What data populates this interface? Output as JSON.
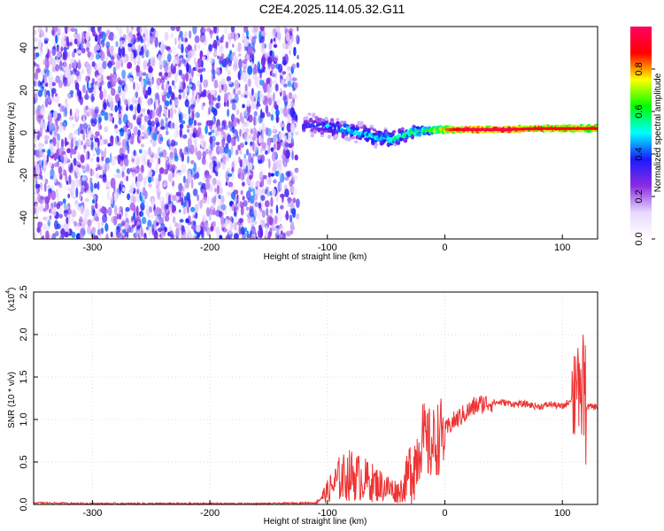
{
  "title": "C2E4.2025.114.05.32.G11",
  "chart_data": [
    {
      "type": "heatmap",
      "xlabel": "Height of straight line (km)",
      "ylabel": "Frequency (Hz)",
      "xlim": [
        -350,
        130
      ],
      "ylim": [
        -50,
        50
      ],
      "xticks": [
        "-300",
        "-200",
        "-100",
        "0",
        "100"
      ],
      "yticks": [
        "-40",
        "-20",
        "0",
        "20",
        "40"
      ],
      "colorbar": {
        "label": "Normalized spectral amplitude",
        "range": [
          0,
          1
        ],
        "ticks": [
          "0.0",
          "0.2",
          "0.4",
          "0.6",
          "0.8"
        ],
        "colors": [
          "#ffffff",
          "#e8d8ff",
          "#8a2be2",
          "#1a1aff",
          "#00ffff",
          "#00ff00",
          "#ffff00",
          "#ff0000",
          "#ff0066"
        ]
      },
      "features": {
        "noise_region_x": [
          -350,
          -125
        ],
        "ridge": [
          {
            "x": -120,
            "y": 4,
            "halfwidth": 6,
            "amp": 0.35
          },
          {
            "x": -100,
            "y": 3,
            "halfwidth": 5,
            "amp": 0.45
          },
          {
            "x": -80,
            "y": 1,
            "halfwidth": 5,
            "amp": 0.5
          },
          {
            "x": -60,
            "y": -2,
            "halfwidth": 5,
            "amp": 0.5
          },
          {
            "x": -45,
            "y": -3,
            "halfwidth": 4,
            "amp": 0.55
          },
          {
            "x": -30,
            "y": 0,
            "halfwidth": 3,
            "amp": 0.6
          },
          {
            "x": -15,
            "y": 1,
            "halfwidth": 2.5,
            "amp": 0.65
          },
          {
            "x": 0,
            "y": 1.5,
            "halfwidth": 2,
            "amp": 0.8
          },
          {
            "x": 20,
            "y": 1.5,
            "halfwidth": 1.5,
            "amp": 0.95
          },
          {
            "x": 50,
            "y": 1.5,
            "halfwidth": 1.5,
            "amp": 0.95
          },
          {
            "x": 80,
            "y": 2,
            "halfwidth": 1.5,
            "amp": 0.9
          },
          {
            "x": 110,
            "y": 2,
            "halfwidth": 1.8,
            "amp": 0.85
          },
          {
            "x": 130,
            "y": 2,
            "halfwidth": 1.8,
            "amp": 0.85
          }
        ]
      }
    },
    {
      "type": "line",
      "xlabel": "Height of straight line (km)",
      "ylabel": "SNR (10 * v/v)",
      "y_exponent_label": "(x10",
      "y_exponent": "4",
      "y_exponent_close": ")",
      "xlim": [
        -350,
        130
      ],
      "ylim": [
        0,
        2.5
      ],
      "xticks": [
        "-300",
        "-200",
        "-100",
        "0",
        "100"
      ],
      "yticks": [
        "0.0",
        "0.5",
        "1.0",
        "1.5",
        "2.0",
        "2.5"
      ],
      "series": [
        {
          "color": "#ee3333",
          "x": [
            -350,
            -300,
            -250,
            -200,
            -150,
            -110,
            -100,
            -90,
            -80,
            -70,
            -60,
            -50,
            -40,
            -35,
            -30,
            -25,
            -20,
            -15,
            -10,
            -5,
            0,
            5,
            10,
            15,
            20,
            25,
            30,
            40,
            50,
            60,
            70,
            80,
            90,
            100,
            105,
            110,
            113,
            115,
            117,
            120,
            125,
            130
          ],
          "y": [
            0.02,
            0.01,
            0.01,
            0.01,
            0.01,
            0.02,
            0.15,
            0.3,
            0.35,
            0.3,
            0.25,
            0.2,
            0.15,
            0.2,
            0.4,
            0.5,
            0.8,
            0.7,
            0.7,
            0.8,
            0.85,
            0.95,
            1.0,
            1.05,
            1.1,
            1.15,
            1.18,
            1.2,
            1.2,
            1.18,
            1.18,
            1.15,
            1.18,
            1.15,
            1.2,
            1.3,
            1.8,
            0.7,
            1.6,
            1.15,
            1.15,
            1.15
          ]
        }
      ]
    }
  ]
}
